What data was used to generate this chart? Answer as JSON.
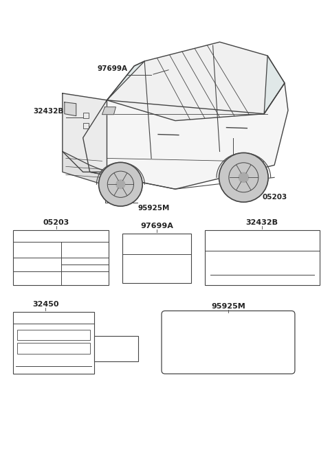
{
  "bg_color": "#ffffff",
  "line_color": "#444444",
  "text_color": "#222222",
  "font_size_label": 7.5,
  "font_size_part": 8.0,
  "label_97699A": "97699A",
  "label_32432B": "32432B",
  "label_95925M": "95925M",
  "label_05203": "05203",
  "label_32450": "32450"
}
